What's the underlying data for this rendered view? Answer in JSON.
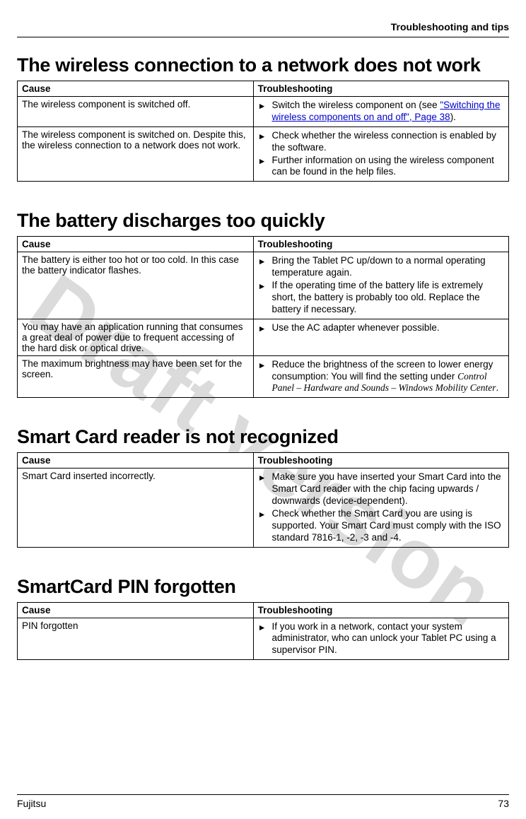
{
  "running_header": "Troubleshooting and tips",
  "watermark": "Draft version",
  "footer": {
    "brand": "Fujitsu",
    "page": "73"
  },
  "sections": [
    {
      "title": "The wireless connection to a network does not work",
      "col_cause": "Cause",
      "col_trouble": "Troubleshooting",
      "rows": [
        {
          "cause": "The wireless component is switched off.",
          "steps": [
            {
              "pre": "Switch the wireless component on (see ",
              "link": "\"Switching the wireless components on and off\", Page 38",
              "post": ")."
            }
          ]
        },
        {
          "cause": "The wireless component is switched on. Despite this, the wireless connection to a network does not work.",
          "steps": [
            {
              "text": "Check whether the wireless connection is enabled by the software."
            },
            {
              "text": "Further information on using the wireless component can be found in the help files."
            }
          ]
        }
      ]
    },
    {
      "title": "The battery discharges too quickly",
      "col_cause": "Cause",
      "col_trouble": "Troubleshooting",
      "rows": [
        {
          "cause": "The battery is either too hot or too cold. In this case the battery indicator flashes.",
          "steps": [
            {
              "text": "Bring the Tablet PC up/down to a normal operating temperature again."
            },
            {
              "text": "If the operating time of the battery life is extremely short, the battery is probably too old. Replace the battery if necessary."
            }
          ]
        },
        {
          "cause": "You may have an application running that consumes a great deal of power due to frequent accessing of the hard disk or optical drive.",
          "steps": [
            {
              "text": "Use the AC adapter whenever possible."
            }
          ]
        },
        {
          "cause": "The maximum brightness may have been set for the screen.",
          "steps": [
            {
              "text_pre": "Reduce the brightness of the screen to lower energy consumption: You will find the setting under ",
              "italic": "Control Panel – Hardware and Sounds – Windows Mobility Center",
              "text_post": "."
            }
          ]
        }
      ]
    },
    {
      "title": "Smart Card reader is not recognized",
      "col_cause": "Cause",
      "col_trouble": "Troubleshooting",
      "rows": [
        {
          "cause": "Smart Card inserted incorrectly.",
          "steps": [
            {
              "text": "Make sure you have inserted your Smart Card into the Smart Card reader with the chip facing upwards / downwards (device-dependent)."
            },
            {
              "text": "Check whether the Smart Card you are using is supported. Your Smart Card must comply with the ISO standard 7816-1, -2, -3 and -4."
            }
          ]
        }
      ]
    },
    {
      "title": "SmartCard PIN forgotten",
      "col_cause": "Cause",
      "col_trouble": "Troubleshooting",
      "rows": [
        {
          "cause": "PIN forgotten",
          "steps": [
            {
              "text": "If you work in a network, contact your system administrator, who can unlock your Tablet PC using a supervisor PIN."
            }
          ]
        }
      ]
    }
  ]
}
